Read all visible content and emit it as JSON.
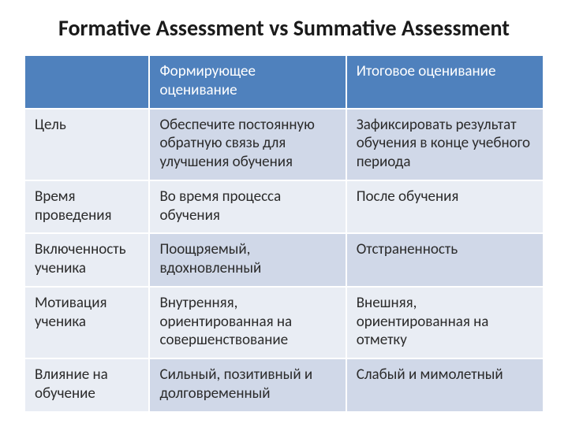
{
  "title": "Formative Assessment vs Summative Assessment",
  "table": {
    "type": "table",
    "header_bg": "#4f81bd",
    "header_text_color": "#ffffff",
    "row_alt_bg": "#d0d8e8",
    "row_bg": "#e9edf4",
    "col0_bg": "#e9edf4",
    "columns": [
      "",
      "Формирующее оценивание",
      "Итоговое оценивание"
    ],
    "rows": [
      [
        "Цель",
        "Обеспечите постоянную обратную связь для улучшения обучения",
        "Зафиксировать результат обучения в конце учебного периода"
      ],
      [
        "Время проведения",
        "Во время процесса обучения",
        "После обучения"
      ],
      [
        "Включенность ученика",
        "Поощряемый, вдохновленный",
        "Отстраненность"
      ],
      [
        "Мотивация ученика",
        "Внутренняя, ориентированная на совершенствование",
        "Внешняя, ориентированная на отметку"
      ],
      [
        "Влияние на обучение",
        "Сильный, позитивный и долговременный",
        "Слабый и мимолетный"
      ]
    ]
  }
}
